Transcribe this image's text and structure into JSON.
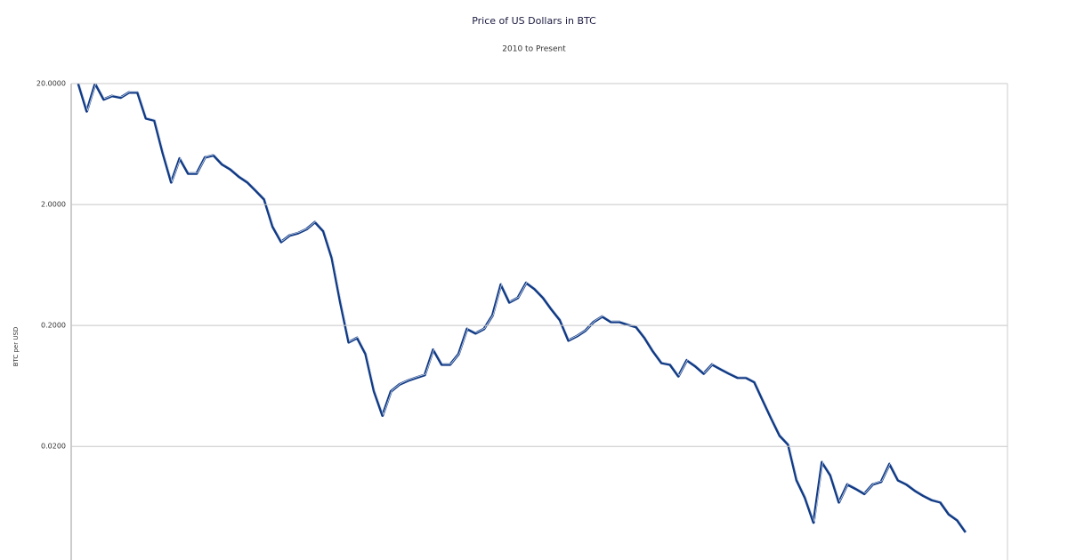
{
  "chart_data": {
    "type": "line",
    "title": "Price of US Dollars in BTC",
    "subtitle": "2010 to Present",
    "y_label": "BTC per USD",
    "log_scale": true,
    "grid": true,
    "color": "#123b85",
    "ylim": [
      0.0023,
      20
    ],
    "yticks": [
      {
        "value": 20,
        "label": "20.0000"
      },
      {
        "value": 2,
        "label": "2.0000"
      },
      {
        "value": 0.2,
        "label": "0.2000"
      },
      {
        "value": 0.02,
        "label": "0.0200"
      }
    ],
    "values": [
      20,
      11.8,
      20,
      14.8,
      15.8,
      15.3,
      16.9,
      16.9,
      10.3,
      9.9,
      5.3,
      3.05,
      4.8,
      3.6,
      3.6,
      4.9,
      5.1,
      4.3,
      3.9,
      3.4,
      3.05,
      2.6,
      2.2,
      1.31,
      0.98,
      1.11,
      1.16,
      1.25,
      1.43,
      1.2,
      0.72,
      0.31,
      0.145,
      0.158,
      0.116,
      0.057,
      0.036,
      0.057,
      0.065,
      0.07,
      0.074,
      0.078,
      0.126,
      0.095,
      0.095,
      0.116,
      0.187,
      0.172,
      0.187,
      0.241,
      0.436,
      0.31,
      0.338,
      0.45,
      0.4,
      0.338,
      0.271,
      0.221,
      0.15,
      0.163,
      0.181,
      0.214,
      0.237,
      0.214,
      0.214,
      0.203,
      0.194,
      0.158,
      0.122,
      0.098,
      0.095,
      0.076,
      0.103,
      0.092,
      0.08,
      0.095,
      0.087,
      0.08,
      0.074,
      0.074,
      0.068,
      0.048,
      0.034,
      0.0245,
      0.0207,
      0.0105,
      0.0075,
      0.0047,
      0.0148,
      0.0115,
      0.0069,
      0.0097,
      0.0089,
      0.0081,
      0.0097,
      0.0102,
      0.0143,
      0.0105,
      0.0097,
      0.0086,
      0.0078,
      0.0072,
      0.0069,
      0.0055,
      0.0049,
      0.0039
    ]
  }
}
